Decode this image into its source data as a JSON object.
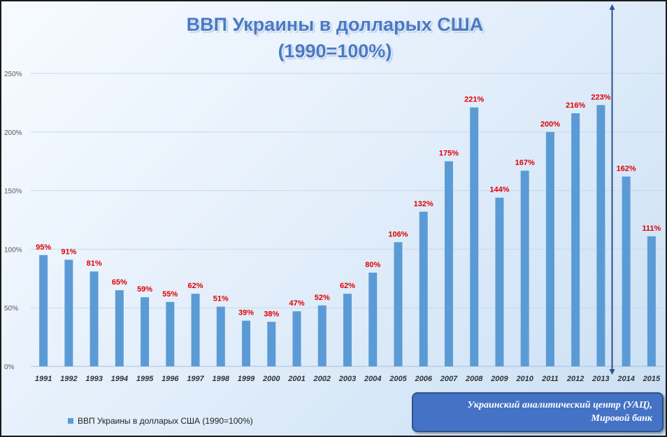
{
  "chart_data": {
    "type": "bar",
    "title": "ВВП Украины в долларых США",
    "subtitle": "(1990=100%)",
    "categories": [
      "1991",
      "1992",
      "1993",
      "1994",
      "1995",
      "1996",
      "1997",
      "1998",
      "1999",
      "2000",
      "2001",
      "2002",
      "2003",
      "2004",
      "2005",
      "2006",
      "2007",
      "2008",
      "2009",
      "2010",
      "2011",
      "2012",
      "2013",
      "2014",
      "2015"
    ],
    "series": [
      {
        "name": "ВВП Украины в долларых США (1990=100%)",
        "values": [
          95,
          91,
          81,
          65,
          59,
          55,
          62,
          51,
          39,
          38,
          47,
          52,
          62,
          80,
          106,
          132,
          175,
          221,
          144,
          167,
          200,
          216,
          223,
          162,
          111
        ],
        "labels": [
          "95%",
          "91%",
          "81%",
          "65%",
          "59%",
          "55%",
          "62%",
          "51%",
          "39%",
          "38%",
          "47%",
          "52%",
          "62%",
          "80%",
          "106%",
          "132%",
          "175%",
          "221%",
          "144%",
          "167%",
          "200%",
          "216%",
          "223%",
          "162%",
          "111%"
        ]
      }
    ],
    "ylim": [
      0,
      250
    ],
    "yticks": [
      0,
      50,
      100,
      150,
      200,
      250
    ],
    "ytick_labels": [
      "0%",
      "50%",
      "100%",
      "150%",
      "200%",
      "250%"
    ],
    "grid": true,
    "legend_position": "bottom-left",
    "marker_after_category": "2013",
    "colors": {
      "bar": "#5b9bd5",
      "data_label": "#e00000",
      "marker": "#2f4f8f"
    }
  },
  "source_note": {
    "line1": "Украинский аналитический центр (УАЦ),",
    "line2": "Мировой банк"
  }
}
